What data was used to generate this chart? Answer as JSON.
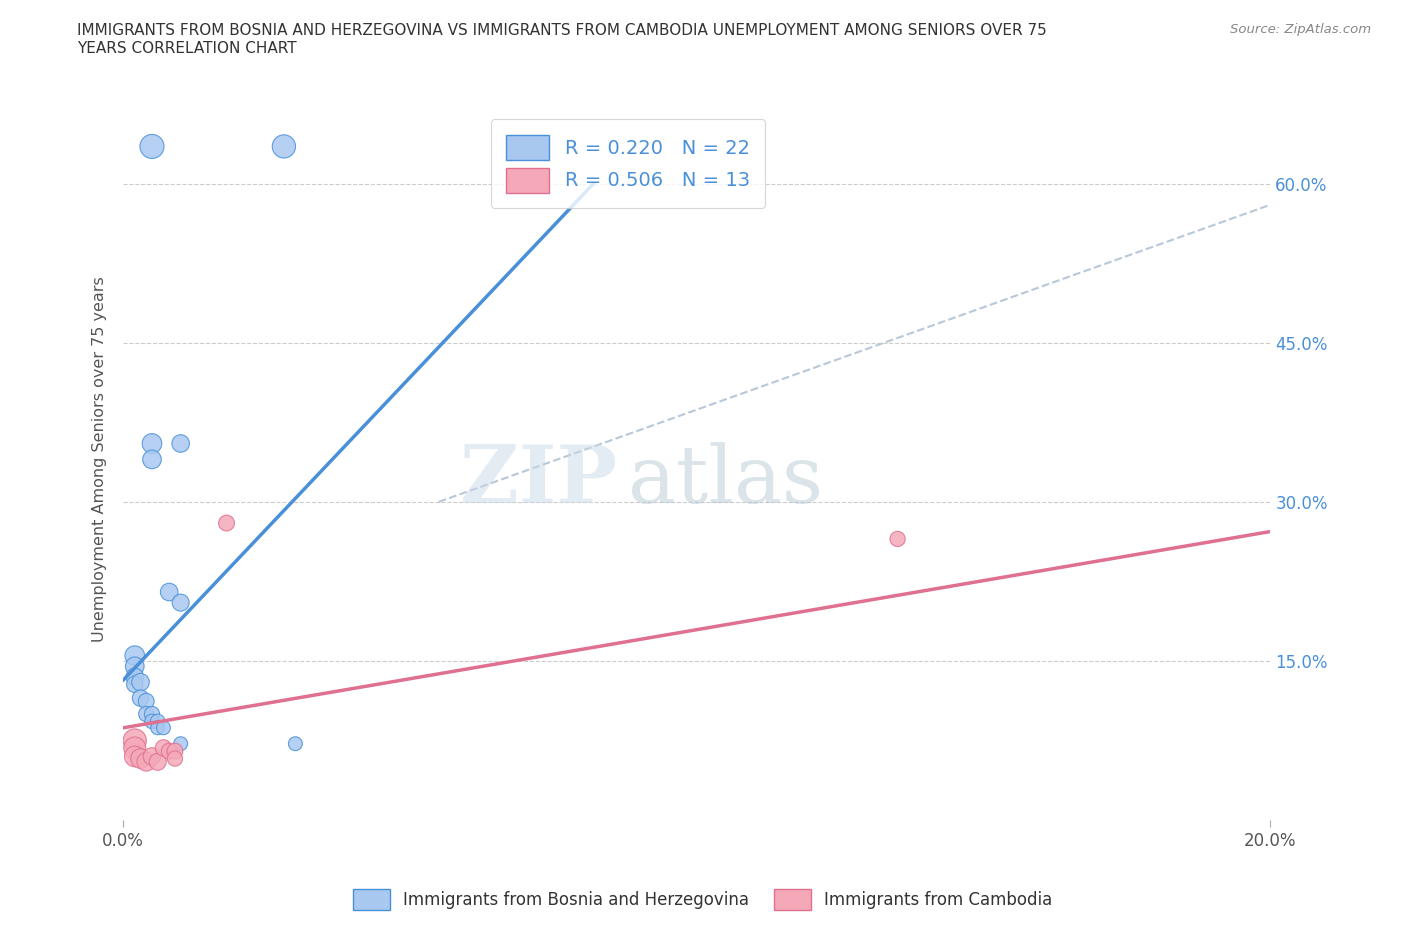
{
  "title": "IMMIGRANTS FROM BOSNIA AND HERZEGOVINA VS IMMIGRANTS FROM CAMBODIA UNEMPLOYMENT AMONG SENIORS OVER 75\nYEARS CORRELATION CHART",
  "source": "Source: ZipAtlas.com",
  "ylabel": "Unemployment Among Seniors over 75 years",
  "ytick_labels": [
    "15.0%",
    "30.0%",
    "45.0%",
    "60.0%"
  ],
  "ytick_values": [
    0.15,
    0.3,
    0.45,
    0.6
  ],
  "xlim": [
    0.0,
    0.21
  ],
  "ylim": [
    -0.01,
    0.7
  ],
  "plot_xlim": [
    0.0,
    0.2
  ],
  "plot_ylim": [
    0.0,
    0.68
  ],
  "bosnia_color": "#a8c8f0",
  "cambodia_color": "#f4a8b8",
  "bosnia_line_color": "#4a90d9",
  "cambodia_line_color": "#e07090",
  "trendline_dashed_color": "#b8c8d8",
  "legend_bosnia_label": "R = 0.220   N = 22",
  "legend_cambodia_label": "R = 0.506   N = 13",
  "watermark_zip": "ZIP",
  "watermark_atlas": "atlas",
  "bosnia_line": [
    [
      0.0,
      0.132
    ],
    [
      0.082,
      0.6
    ]
  ],
  "cambodia_line": [
    [
      0.0,
      0.087
    ],
    [
      0.2,
      0.272
    ]
  ],
  "dashed_line": [
    [
      0.055,
      0.3
    ],
    [
      0.2,
      0.58
    ]
  ],
  "bosnia_scatter": [
    [
      0.005,
      0.635
    ],
    [
      0.028,
      0.635
    ],
    [
      0.005,
      0.355
    ],
    [
      0.005,
      0.34
    ],
    [
      0.01,
      0.355
    ],
    [
      0.008,
      0.215
    ],
    [
      0.01,
      0.205
    ],
    [
      0.002,
      0.155
    ],
    [
      0.002,
      0.145
    ],
    [
      0.002,
      0.135
    ],
    [
      0.002,
      0.128
    ],
    [
      0.003,
      0.13
    ],
    [
      0.003,
      0.115
    ],
    [
      0.004,
      0.112
    ],
    [
      0.004,
      0.1
    ],
    [
      0.005,
      0.1
    ],
    [
      0.005,
      0.093
    ],
    [
      0.006,
      0.093
    ],
    [
      0.006,
      0.087
    ],
    [
      0.007,
      0.087
    ],
    [
      0.01,
      0.072
    ],
    [
      0.03,
      0.072
    ]
  ],
  "cambodia_scatter": [
    [
      0.002,
      0.075
    ],
    [
      0.002,
      0.068
    ],
    [
      0.002,
      0.06
    ],
    [
      0.003,
      0.058
    ],
    [
      0.004,
      0.055
    ],
    [
      0.005,
      0.06
    ],
    [
      0.006,
      0.055
    ],
    [
      0.007,
      0.068
    ],
    [
      0.008,
      0.065
    ],
    [
      0.009,
      0.065
    ],
    [
      0.009,
      0.058
    ],
    [
      0.018,
      0.28
    ],
    [
      0.135,
      0.265
    ]
  ],
  "bosnia_bubble_sizes": [
    300,
    280,
    200,
    180,
    160,
    160,
    150,
    200,
    180,
    160,
    140,
    160,
    140,
    130,
    120,
    120,
    110,
    110,
    100,
    100,
    100,
    100
  ],
  "cambodia_bubble_sizes": [
    280,
    250,
    220,
    200,
    180,
    160,
    150,
    140,
    130,
    130,
    120,
    130,
    120
  ]
}
